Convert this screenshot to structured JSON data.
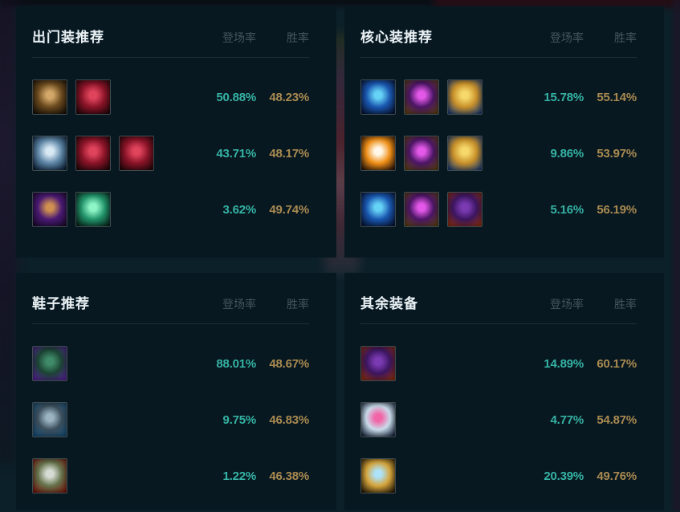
{
  "colors": {
    "page_bg": "#0c2029",
    "panel_bg": "#081821",
    "title_text": "#e9eef0",
    "column_header_text": "#46565e",
    "divider": "#1d2f37",
    "pickrate_text": "#35b3a4",
    "winrate_text": "#a98a50",
    "icon_border": "#3f4b4f"
  },
  "panels": [
    {
      "title": "出门装推荐",
      "columns": {
        "pickrate": "登场率",
        "winrate": "胜率"
      },
      "rows": [
        {
          "pickrate": "50.88%",
          "winrate": "48.23%",
          "icons": [
            {
              "name": "dorans-shield-icon",
              "c1": "#d2a768",
              "c2": "#6b4a1f",
              "c3": "#171008"
            },
            {
              "name": "health-potion-icon",
              "c1": "#e0445c",
              "c2": "#8a1428",
              "c3": "#230609"
            }
          ]
        },
        {
          "pickrate": "43.71%",
          "winrate": "48.17%",
          "icons": [
            {
              "name": "dorans-ring-icon",
              "c1": "#d8e9f4",
              "c2": "#5e86a6",
              "c3": "#0a1e36"
            },
            {
              "name": "health-potion-icon",
              "c1": "#e0445c",
              "c2": "#8a1428",
              "c3": "#230609"
            },
            {
              "name": "health-potion-icon",
              "c1": "#e0445c",
              "c2": "#8a1428",
              "c3": "#230609"
            }
          ]
        },
        {
          "pickrate": "3.62%",
          "winrate": "49.74%",
          "icons": [
            {
              "name": "dark-seal-icon",
              "c1": "#cf9050",
              "c2": "#4a1a74",
              "c3": "#1c0a2e"
            },
            {
              "name": "refillable-potion-icon",
              "c1": "#8ef5c6",
              "c2": "#22936a",
              "c3": "#07241c"
            }
          ]
        }
      ]
    },
    {
      "title": "核心装推荐",
      "columns": {
        "pickrate": "登场率",
        "winrate": "胜率"
      },
      "rows": [
        {
          "pickrate": "15.78%",
          "winrate": "55.14%",
          "icons": [
            {
              "name": "blackfire-torch-icon",
              "c1": "#66d2f6",
              "c2": "#1a57b0",
              "c3": "#071434"
            },
            {
              "name": "shadowflame-icon",
              "c1": "#e358e8",
              "c2": "#4c1666",
              "c3": "#5e4312"
            },
            {
              "name": "zhonyas-hourglass-icon",
              "c1": "#f6d86a",
              "c2": "#c8902a",
              "c3": "#1d3f7a"
            }
          ]
        },
        {
          "pickrate": "9.86%",
          "winrate": "53.97%",
          "icons": [
            {
              "name": "flame-sword-icon",
              "c1": "#fff8e8",
              "c2": "#f09018",
              "c3": "#2a1408"
            },
            {
              "name": "shadowflame-icon",
              "c1": "#e358e8",
              "c2": "#4c1666",
              "c3": "#5e4312"
            },
            {
              "name": "zhonyas-hourglass-icon",
              "c1": "#f6d86a",
              "c2": "#c8902a",
              "c3": "#1d3f7a"
            }
          ]
        },
        {
          "pickrate": "5.16%",
          "winrate": "56.19%",
          "icons": [
            {
              "name": "blackfire-torch-icon",
              "c1": "#66d2f6",
              "c2": "#1a57b0",
              "c3": "#071434"
            },
            {
              "name": "shadowflame-icon",
              "c1": "#e358e8",
              "c2": "#4c1666",
              "c3": "#5e4312"
            },
            {
              "name": "rabadons-deathcap-icon",
              "c1": "#7a3ab2",
              "c2": "#3c1660",
              "c3": "#93300d"
            }
          ]
        }
      ]
    },
    {
      "title": "鞋子推荐",
      "columns": {
        "pickrate": "登场率",
        "winrate": "胜率"
      },
      "rows": [
        {
          "pickrate": "88.01%",
          "winrate": "48.67%",
          "icons": [
            {
              "name": "sorcerers-shoes-icon",
              "c1": "#3f8a68",
              "c2": "#1c4434",
              "c3": "#5a22a0"
            }
          ]
        },
        {
          "pickrate": "9.75%",
          "winrate": "46.83%",
          "icons": [
            {
              "name": "mercury-treads-icon",
              "c1": "#9ab4c2",
              "c2": "#3c4f5c",
              "c3": "#15507a"
            }
          ]
        },
        {
          "pickrate": "1.22%",
          "winrate": "46.38%",
          "icons": [
            {
              "name": "plated-boots-icon",
              "c1": "#d6dcd4",
              "c2": "#66734c",
              "c3": "#79160d"
            }
          ]
        }
      ]
    },
    {
      "title": "其余装备",
      "columns": {
        "pickrate": "登场率",
        "winrate": "胜率"
      },
      "rows": [
        {
          "pickrate": "14.89%",
          "winrate": "60.17%",
          "icons": [
            {
              "name": "rabadons-deathcap-icon",
              "c1": "#7a3ab2",
              "c2": "#3c1660",
              "c3": "#93300d"
            }
          ]
        },
        {
          "pickrate": "4.77%",
          "winrate": "54.87%",
          "icons": [
            {
              "name": "crystal-shard-icon",
              "c1": "#f265a6",
              "c2": "#c9dcea",
              "c3": "#17263e"
            }
          ]
        },
        {
          "pickrate": "20.39%",
          "winrate": "49.76%",
          "icons": [
            {
              "name": "golden-relic-icon",
              "c1": "#aee2f8",
              "c2": "#d5a53c",
              "c3": "#2a1c08"
            }
          ]
        }
      ]
    }
  ]
}
